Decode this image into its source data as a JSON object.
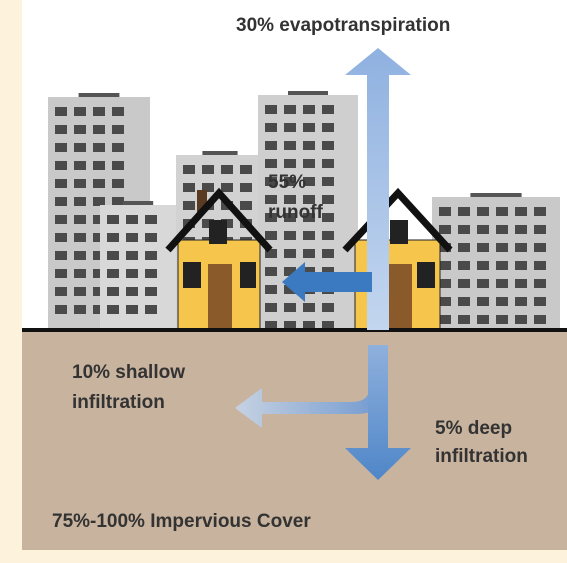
{
  "labels": [
    {
      "lines": [
        "30% evapotranspiration"
      ]
    },
    {
      "lines": [
        "55%",
        "runoff"
      ]
    },
    {
      "lines": [
        "10% shallow",
        "infiltration"
      ]
    },
    {
      "lines": [
        "5% deep",
        "infiltration"
      ]
    },
    {
      "lines": [
        "75%-100% Impervious Cover"
      ]
    }
  ]
}
